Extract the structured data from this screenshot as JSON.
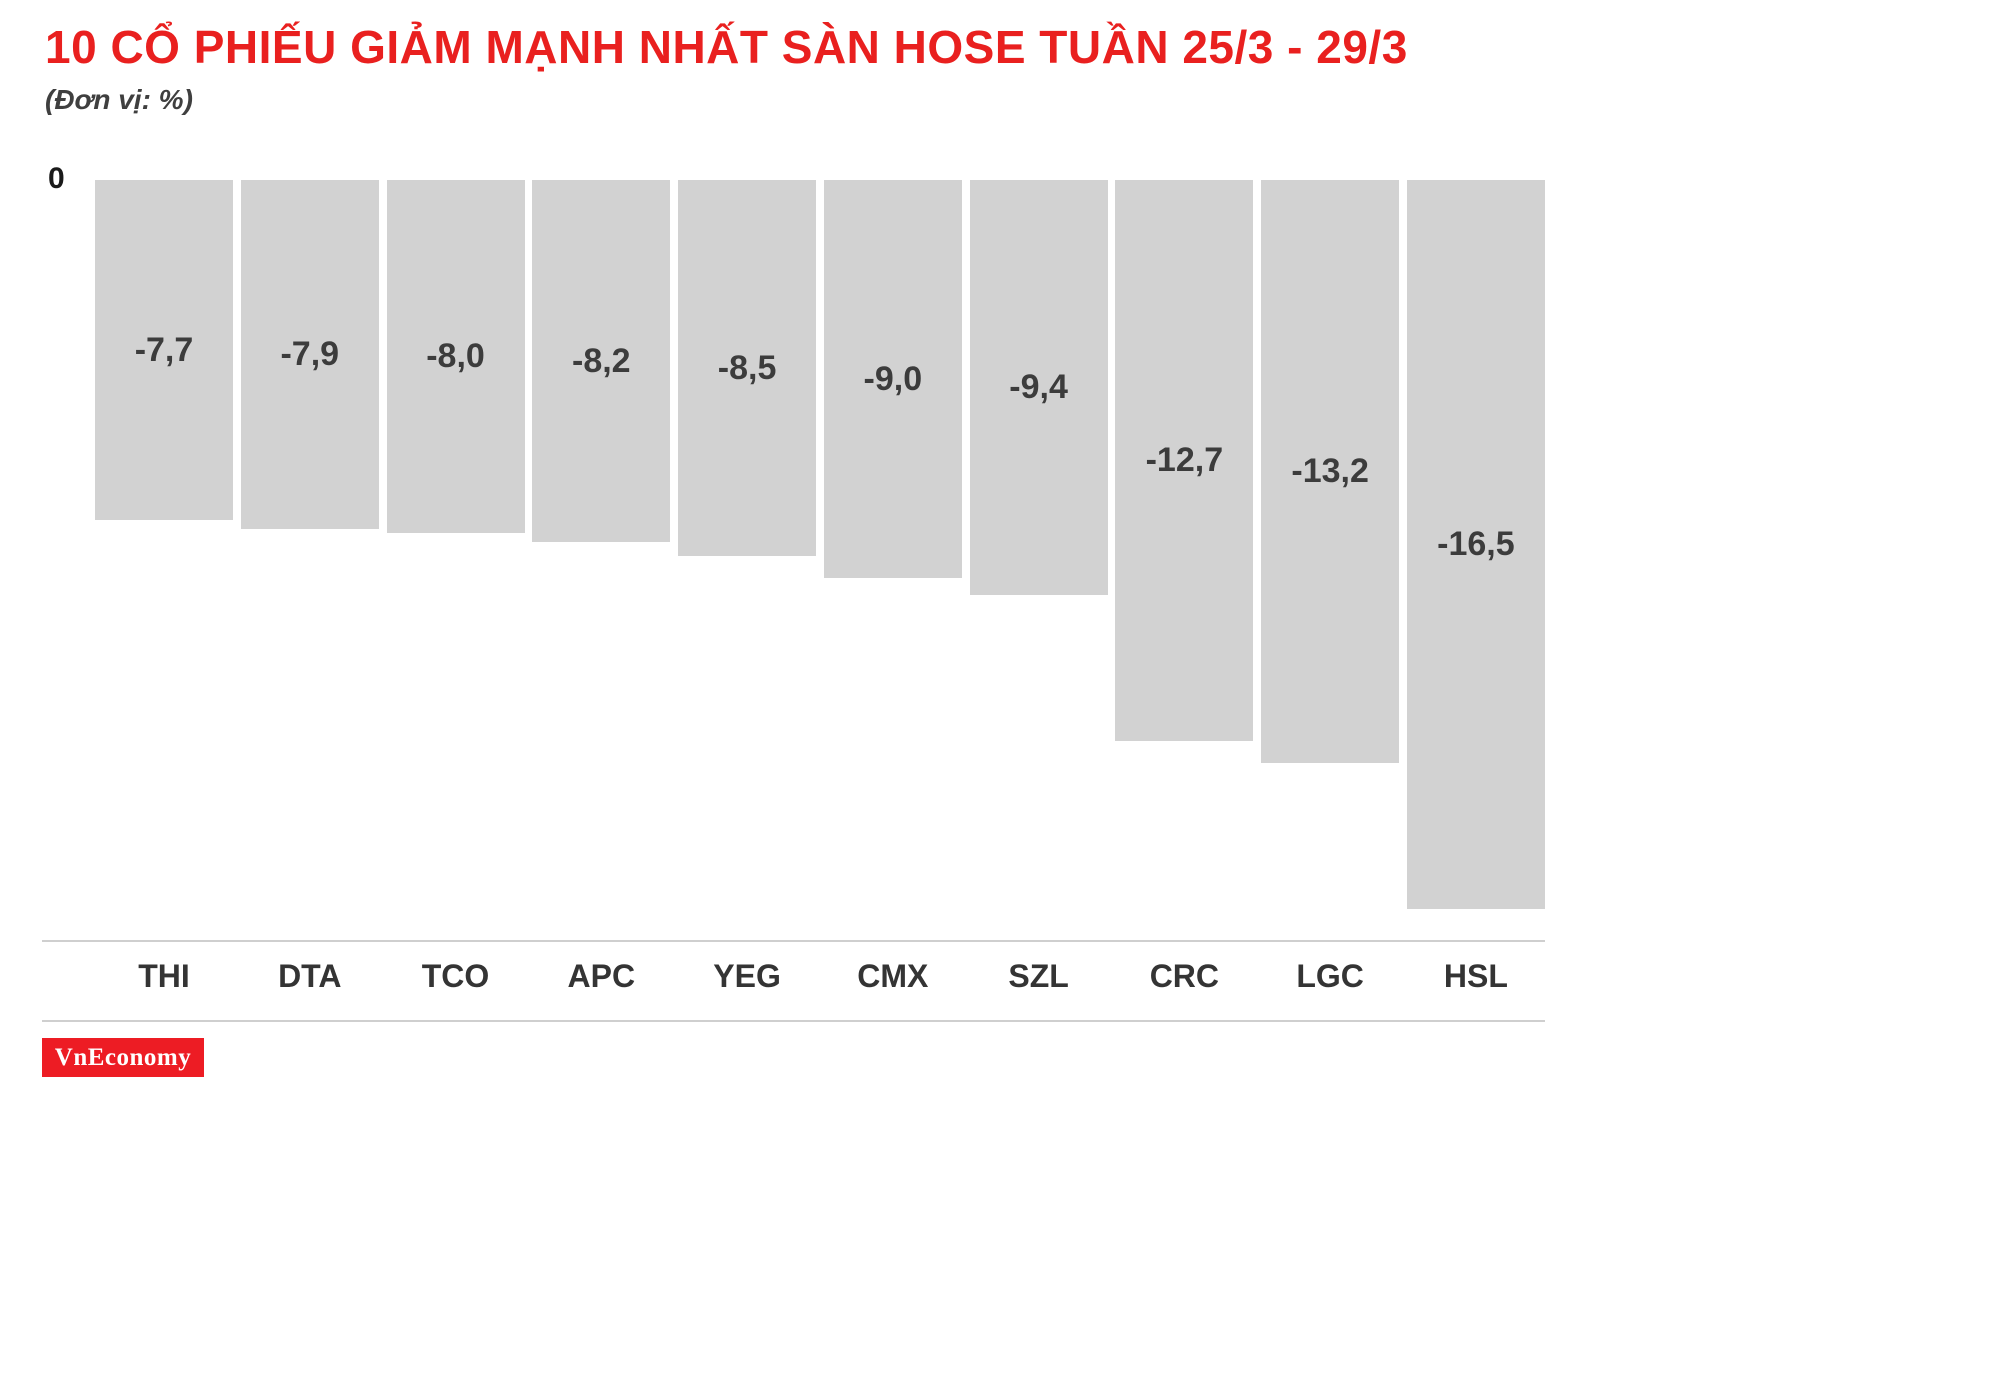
{
  "title": "10 CỔ PHIẾU GIẢM MẠNH NHẤT SÀN HOSE TUẦN 25/3 - 29/3",
  "unit_label": "(Đơn vị: %)",
  "axis": {
    "zero_label": "0"
  },
  "chart_data": {
    "type": "bar",
    "orientation": "vertical-negative",
    "title": "10 CỔ PHIẾU GIẢM MẠNH NHẤT SÀN HOSE TUẦN 25/3 - 29/3",
    "xlabel": "",
    "ylabel": "%",
    "ylim": [
      -17,
      0
    ],
    "grid": false,
    "legend": false,
    "categories": [
      "THI",
      "DTA",
      "TCO",
      "APC",
      "YEG",
      "CMX",
      "SZL",
      "CRC",
      "LGC",
      "HSL"
    ],
    "values": [
      -7.7,
      -7.9,
      -8.0,
      -8.2,
      -8.5,
      -9.0,
      -9.4,
      -12.7,
      -13.2,
      -16.5
    ],
    "value_labels": [
      "-7,7",
      "-7,9",
      "-8,0",
      "-8,2",
      "-8,5",
      "-9,0",
      "-9,4",
      "-12,7",
      "-13,2",
      "-16,5"
    ],
    "bar_color": "#d2d2d2"
  },
  "branding": {
    "logo_text": "VnEconomy",
    "logo_bg": "#ED1C24",
    "logo_text_color": "#ffffff"
  },
  "colors": {
    "title_red": "#e9201f",
    "value_text": "#3c3c3c",
    "category_text": "#343434",
    "separator": "#cfcfcf"
  }
}
